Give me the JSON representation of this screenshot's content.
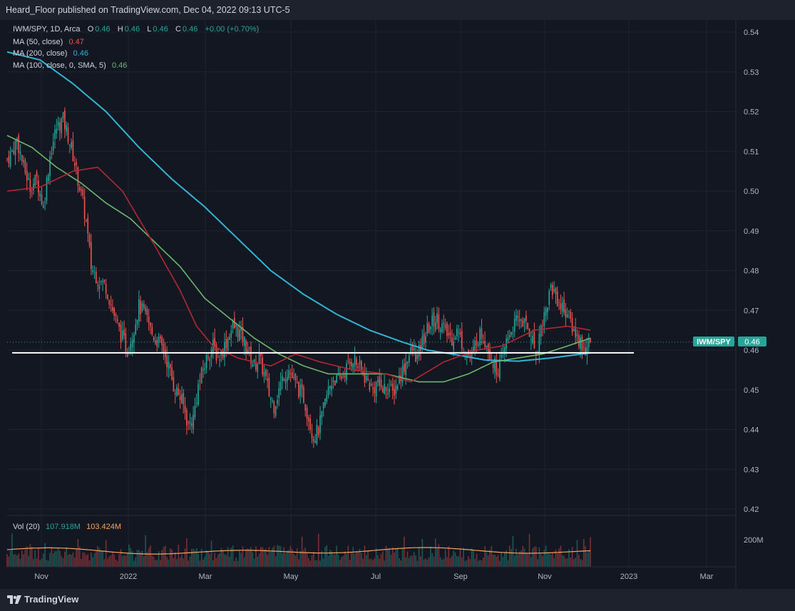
{
  "header": {
    "title": "Heard_Floor published on TradingView.com, Dec 04, 2022 09:13 UTC-5"
  },
  "legend": {
    "symbol": "IWM/SPY, 1D, Arca",
    "o_label": "O",
    "o_val": "0.46",
    "h_label": "H",
    "h_val": "0.46",
    "l_label": "L",
    "l_val": "0.46",
    "c_label": "C",
    "c_val": "0.46",
    "change": "+0.00 (+0.70%)",
    "ma50_label": "MA (50, close)",
    "ma50_val": "0.47",
    "ma200_label": "MA (200, close)",
    "ma200_val": "0.46",
    "ma100_label": "MA (100, close, 0, SMA, 5)",
    "ma100_val": "0.46",
    "vol_label": "Vol (20)",
    "vol_val1": "107.918M",
    "vol_val2": "103.424M"
  },
  "price_tag": {
    "symbol": "IWM/SPY",
    "value": "0.46"
  },
  "footer": {
    "logo": "TradingView"
  },
  "colors": {
    "up": "#26a69a",
    "down": "#ef5350",
    "ma50": "#b22833",
    "ma200": "#32b4d2",
    "ma100": "#6cb86a",
    "volma": "#f7a35c",
    "support": "#ffffff"
  },
  "chart_data": {
    "type": "candlestick",
    "y_ticks": [
      "0.54",
      "0.53",
      "0.52",
      "0.51",
      "0.50",
      "0.49",
      "0.48",
      "0.47",
      "0.46",
      "0.45",
      "0.44",
      "0.43",
      "0.42"
    ],
    "x_ticks": [
      "Nov",
      "2022",
      "Mar",
      "May",
      "Jul",
      "Sep",
      "Nov",
      "2023",
      "Mar"
    ],
    "vol_tick": "200M",
    "ylim": [
      0.42,
      0.54
    ],
    "support_level": 0.4593,
    "last_price": 0.462,
    "price_path": [
      [
        0,
        0.508
      ],
      [
        3,
        0.51
      ],
      [
        6,
        0.513
      ],
      [
        10,
        0.506
      ],
      [
        14,
        0.501
      ],
      [
        18,
        0.503
      ],
      [
        22,
        0.496
      ],
      [
        26,
        0.509
      ],
      [
        30,
        0.516
      ],
      [
        34,
        0.518
      ],
      [
        37,
        0.514
      ],
      [
        40,
        0.509
      ],
      [
        43,
        0.503
      ],
      [
        46,
        0.497
      ],
      [
        48,
        0.492
      ],
      [
        51,
        0.481
      ],
      [
        55,
        0.478
      ],
      [
        60,
        0.476
      ],
      [
        64,
        0.47
      ],
      [
        68,
        0.465
      ],
      [
        71,
        0.462
      ],
      [
        73,
        0.46
      ],
      [
        76,
        0.464
      ],
      [
        80,
        0.471
      ],
      [
        84,
        0.469
      ],
      [
        88,
        0.464
      ],
      [
        92,
        0.462
      ],
      [
        95,
        0.46
      ],
      [
        98,
        0.456
      ],
      [
        101,
        0.451
      ],
      [
        104,
        0.449
      ],
      [
        107,
        0.446
      ],
      [
        110,
        0.441
      ],
      [
        113,
        0.443
      ],
      [
        116,
        0.451
      ],
      [
        119,
        0.455
      ],
      [
        122,
        0.459
      ],
      [
        125,
        0.461
      ],
      [
        128,
        0.458
      ],
      [
        131,
        0.46
      ],
      [
        134,
        0.463
      ],
      [
        137,
        0.466
      ],
      [
        140,
        0.465
      ],
      [
        143,
        0.463
      ],
      [
        146,
        0.46
      ],
      [
        150,
        0.456
      ],
      [
        153,
        0.458
      ],
      [
        156,
        0.454
      ],
      [
        159,
        0.449
      ],
      [
        162,
        0.446
      ],
      [
        165,
        0.45
      ],
      [
        168,
        0.454
      ],
      [
        171,
        0.455
      ],
      [
        174,
        0.452
      ],
      [
        177,
        0.45
      ],
      [
        180,
        0.448
      ],
      [
        183,
        0.443
      ],
      [
        186,
        0.438
      ],
      [
        189,
        0.44
      ],
      [
        192,
        0.445
      ],
      [
        195,
        0.45
      ],
      [
        198,
        0.453
      ],
      [
        201,
        0.452
      ],
      [
        204,
        0.454
      ],
      [
        207,
        0.456
      ],
      [
        210,
        0.458
      ],
      [
        213,
        0.456
      ],
      [
        216,
        0.454
      ],
      [
        219,
        0.452
      ],
      [
        222,
        0.45
      ],
      [
        225,
        0.452
      ],
      [
        228,
        0.45
      ],
      [
        231,
        0.451
      ],
      [
        234,
        0.449
      ],
      [
        237,
        0.452
      ],
      [
        240,
        0.455
      ],
      [
        243,
        0.458
      ],
      [
        246,
        0.46
      ],
      [
        249,
        0.458
      ],
      [
        252,
        0.462
      ],
      [
        255,
        0.465
      ],
      [
        258,
        0.467
      ],
      [
        261,
        0.468
      ],
      [
        264,
        0.466
      ],
      [
        267,
        0.464
      ],
      [
        270,
        0.463
      ],
      [
        273,
        0.465
      ],
      [
        276,
        0.462
      ],
      [
        279,
        0.459
      ],
      [
        282,
        0.458
      ],
      [
        285,
        0.463
      ],
      [
        288,
        0.464
      ],
      [
        291,
        0.462
      ],
      [
        294,
        0.458
      ],
      [
        297,
        0.455
      ],
      [
        300,
        0.457
      ],
      [
        303,
        0.462
      ],
      [
        306,
        0.465
      ],
      [
        309,
        0.467
      ],
      [
        312,
        0.468
      ],
      [
        315,
        0.466
      ],
      [
        318,
        0.464
      ],
      [
        321,
        0.459
      ],
      [
        324,
        0.466
      ],
      [
        327,
        0.47
      ],
      [
        330,
        0.476
      ],
      [
        333,
        0.474
      ],
      [
        336,
        0.471
      ],
      [
        339,
        0.47
      ],
      [
        342,
        0.467
      ],
      [
        345,
        0.464
      ],
      [
        348,
        0.462
      ],
      [
        351,
        0.46
      ],
      [
        354,
        0.462
      ]
    ],
    "ma50_path": [
      [
        0,
        0.5
      ],
      [
        20,
        0.501
      ],
      [
        40,
        0.505
      ],
      [
        55,
        0.506
      ],
      [
        70,
        0.5
      ],
      [
        90,
        0.486
      ],
      [
        105,
        0.475
      ],
      [
        115,
        0.466
      ],
      [
        125,
        0.461
      ],
      [
        140,
        0.458
      ],
      [
        160,
        0.456
      ],
      [
        175,
        0.459
      ],
      [
        190,
        0.457
      ],
      [
        210,
        0.455
      ],
      [
        230,
        0.454
      ],
      [
        245,
        0.452
      ],
      [
        265,
        0.457
      ],
      [
        285,
        0.46
      ],
      [
        300,
        0.461
      ],
      [
        320,
        0.465
      ],
      [
        340,
        0.466
      ],
      [
        354,
        0.465
      ]
    ],
    "ma200_path": [
      [
        0,
        0.535
      ],
      [
        20,
        0.533
      ],
      [
        40,
        0.527
      ],
      [
        60,
        0.52
      ],
      [
        80,
        0.511
      ],
      [
        100,
        0.503
      ],
      [
        120,
        0.496
      ],
      [
        140,
        0.488
      ],
      [
        160,
        0.48
      ],
      [
        180,
        0.474
      ],
      [
        200,
        0.469
      ],
      [
        220,
        0.465
      ],
      [
        240,
        0.462
      ],
      [
        255,
        0.46
      ],
      [
        270,
        0.459
      ],
      [
        290,
        0.4575
      ],
      [
        310,
        0.4572
      ],
      [
        330,
        0.458
      ],
      [
        345,
        0.4588
      ],
      [
        354,
        0.4593
      ]
    ],
    "ma100_path": [
      [
        0,
        0.514
      ],
      [
        15,
        0.511
      ],
      [
        30,
        0.506
      ],
      [
        45,
        0.502
      ],
      [
        60,
        0.497
      ],
      [
        75,
        0.493
      ],
      [
        90,
        0.487
      ],
      [
        105,
        0.481
      ],
      [
        120,
        0.473
      ],
      [
        135,
        0.468
      ],
      [
        150,
        0.463
      ],
      [
        165,
        0.459
      ],
      [
        180,
        0.456
      ],
      [
        195,
        0.454
      ],
      [
        210,
        0.454
      ],
      [
        230,
        0.454
      ],
      [
        250,
        0.452
      ],
      [
        265,
        0.452
      ],
      [
        280,
        0.454
      ],
      [
        295,
        0.457
      ],
      [
        310,
        0.458
      ],
      [
        325,
        0.459
      ],
      [
        340,
        0.461
      ],
      [
        354,
        0.463
      ]
    ],
    "volume_ma_level": 0.35
  }
}
